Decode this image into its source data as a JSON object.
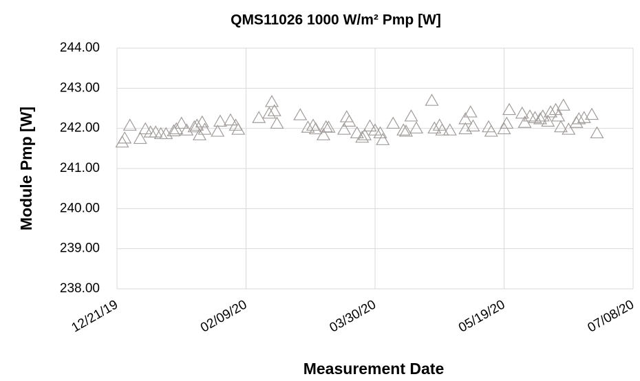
{
  "chart_data": {
    "type": "scatter",
    "title": "QMS11026 1000 W/m² Pmp [W]",
    "x_label": "Measurement Date",
    "y_label": "Module Pmp [W]",
    "color": "#a19c9a",
    "marker": "triangle",
    "grid": true,
    "xlim": [
      "2019-12-21",
      "2020-07-08"
    ],
    "xticks": [
      {
        "value": "2019-12-21",
        "label": "12/21/19"
      },
      {
        "value": "2020-02-09",
        "label": "02/09/20"
      },
      {
        "value": "2020-03-30",
        "label": "03/30/20"
      },
      {
        "value": "2020-05-19",
        "label": "05/19/20"
      },
      {
        "value": "2020-07-08",
        "label": "07/08/20"
      }
    ],
    "ylim": [
      238,
      244
    ],
    "yticks": [
      {
        "value": 238,
        "label": "238.00"
      },
      {
        "value": 239,
        "label": "239.00"
      },
      {
        "value": 240,
        "label": "240.00"
      },
      {
        "value": 241,
        "label": "241.00"
      },
      {
        "value": 242,
        "label": "242.00"
      },
      {
        "value": 243,
        "label": "243.00"
      },
      {
        "value": 244,
        "label": "244.00"
      }
    ],
    "x": [
      "2019-12-23",
      "2019-12-24",
      "2019-12-26",
      "2019-12-30",
      "2020-01-01",
      "2020-01-03",
      "2020-01-05",
      "2020-01-07",
      "2020-01-09",
      "2020-01-12",
      "2020-01-13",
      "2020-01-15",
      "2020-01-17",
      "2020-01-20",
      "2020-01-21",
      "2020-01-22",
      "2020-01-23",
      "2020-01-24",
      "2020-01-29",
      "2020-01-30",
      "2020-02-03",
      "2020-02-05",
      "2020-02-06",
      "2020-02-14",
      "2020-02-18",
      "2020-02-19",
      "2020-02-20",
      "2020-02-21",
      "2020-03-01",
      "2020-03-04",
      "2020-03-06",
      "2020-03-07",
      "2020-03-10",
      "2020-03-11",
      "2020-03-12",
      "2020-03-18",
      "2020-03-19",
      "2020-03-20",
      "2020-03-23",
      "2020-03-25",
      "2020-03-26",
      "2020-03-28",
      "2020-03-30",
      "2020-04-01",
      "2020-04-02",
      "2020-04-06",
      "2020-04-10",
      "2020-04-11",
      "2020-04-13",
      "2020-04-15",
      "2020-04-21",
      "2020-04-22",
      "2020-04-24",
      "2020-04-25",
      "2020-04-28",
      "2020-05-04",
      "2020-05-06",
      "2020-05-04",
      "2020-05-07",
      "2020-05-13",
      "2020-05-14",
      "2020-05-19",
      "2020-05-20",
      "2020-05-21",
      "2020-05-26",
      "2020-05-27",
      "2020-05-29",
      "2020-05-31",
      "2020-06-02",
      "2020-06-03",
      "2020-06-05",
      "2020-06-06",
      "2020-06-08",
      "2020-06-09",
      "2020-06-10",
      "2020-06-11",
      "2020-06-13",
      "2020-06-16",
      "2020-06-17",
      "2020-06-19",
      "2020-06-22",
      "2020-06-24"
    ],
    "values": [
      241.65,
      241.75,
      242.07,
      241.74,
      241.98,
      241.9,
      241.9,
      241.86,
      241.86,
      241.93,
      241.98,
      242.12,
      241.95,
      242.03,
      242.07,
      241.83,
      242.15,
      241.97,
      241.92,
      242.17,
      242.2,
      242.07,
      241.97,
      242.26,
      242.37,
      242.66,
      242.43,
      242.12,
      242.33,
      242.02,
      242.07,
      241.98,
      241.83,
      242.03,
      242.02,
      241.97,
      242.28,
      242.17,
      241.88,
      241.77,
      241.83,
      242.05,
      241.95,
      241.88,
      241.71,
      242.12,
      241.95,
      241.92,
      242.3,
      242.0,
      242.69,
      242.0,
      242.07,
      241.95,
      241.95,
      242.23,
      242.4,
      241.98,
      242.05,
      242.03,
      241.92,
      241.98,
      242.12,
      242.46,
      242.37,
      242.14,
      242.3,
      242.26,
      242.23,
      242.3,
      242.17,
      242.4,
      242.46,
      242.3,
      242.03,
      242.57,
      241.97,
      242.14,
      242.23,
      242.26,
      242.34,
      241.88
    ]
  }
}
